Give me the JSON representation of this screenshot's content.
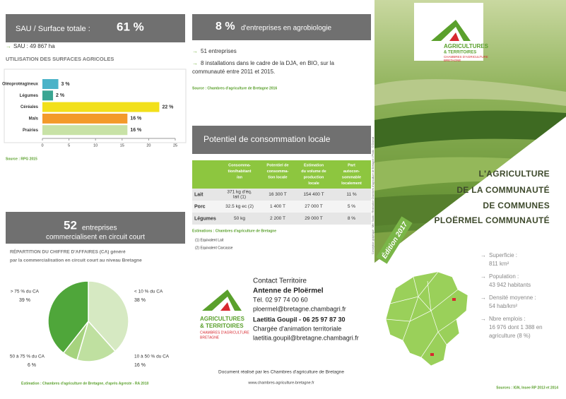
{
  "sau": {
    "title": "SAU / Surface totale :",
    "value": "61 %",
    "detail": "SAU : 49 867 ha",
    "chart_title": "UTILISATION DES SURFACES AGRICOLES",
    "source": "Source : RPG 2015"
  },
  "land_use_chart": {
    "type": "bar",
    "categories": [
      "Oléoprotéagineux",
      "Légumes",
      "Céréales",
      "Maïs",
      "Prairies"
    ],
    "values": [
      3,
      2,
      22,
      16,
      16
    ],
    "value_labels": [
      "3 %",
      "2 %",
      "22 %",
      "16 %",
      "16 %"
    ],
    "colors": [
      "#4bb3c8",
      "#3aa592",
      "#f2e01a",
      "#f39a2a",
      "#c8e2a6"
    ],
    "xlim": [
      0,
      25
    ],
    "xticks": [
      0,
      5,
      10,
      15,
      20,
      25
    ]
  },
  "circuit": {
    "value": "52",
    "title": "entreprises",
    "subtitle": "commercialisent en circuit court",
    "chart_title": [
      "RÉPARTITION DU CHIFFRE D'AFFAIRES (CA) généré",
      "par la commercialisation en circuit court au niveau Bretagne"
    ],
    "source": "Estimation : Chambres d'agriculture de Bretagne, d'après Agreste - RA 2010"
  },
  "revenue_chart": {
    "type": "pie",
    "categories": [
      "< 10 % du CA",
      "10 à 50 % du CA",
      "50 à 75 % du CA",
      "> 75 % du CA"
    ],
    "values": [
      38,
      16,
      6,
      39
    ],
    "value_labels": [
      "38 %",
      "16 %",
      "6 %",
      "39 %"
    ],
    "colors": [
      "#d6e9c2",
      "#bfe0a0",
      "#a6d37e",
      "#4fa63a"
    ]
  },
  "bio": {
    "value": "8 %",
    "title": "d'entreprises en agrobiologie",
    "items": [
      "51 entreprises",
      [
        "8 installations dans le cadre de la DJA, en BIO, sur la",
        "communauté entre 2011 et 2015."
      ]
    ],
    "source": "Source : Chambres d'agriculture de Bretagne 2016"
  },
  "consumption": {
    "title": "Potentiel de consommation locale",
    "columns": [
      [
        "Consomma-",
        "tion/habitant",
        "/an"
      ],
      [
        "Potentiel de",
        "consomma-",
        "tion locale"
      ],
      [
        "Estimation",
        "du volume de",
        "production",
        "locale"
      ],
      [
        "Part",
        "autocon-",
        "sommable",
        "localement"
      ]
    ],
    "rows": [
      [
        "Lait",
        [
          "371 kg d'éq.",
          "lait (1)"
        ],
        "16 300 T",
        "154 400 T",
        "11 %"
      ],
      [
        "Porc",
        [
          "32.5 kg ec (2)"
        ],
        "1 400 T",
        "27 000 T",
        "5 %"
      ],
      [
        "Légumes",
        [
          "50 kg"
        ],
        "2 200 T",
        "29 000 T",
        "8 %"
      ]
    ],
    "source": "Estimations : Chambres d'agriculture de Bretagne",
    "notes": [
      "(1) Equivalent Lait",
      "(2) Equivalent Carcasse"
    ]
  },
  "credits": "Conception graphique : Mer Studio • Réalisation Chambres d'agriculture de Bretagne • Photo : © Dromat",
  "logo": {
    "name": "AGRICULTURES",
    "sub": "& TERRITOIRES",
    "org": "CHAMBRES D'AGRICULTURE",
    "region": "BRETAGNE"
  },
  "contact": [
    "Contact Territoire",
    "Antenne de Ploërmel",
    "Tél. 02 97 74 00 60",
    "ploermel@bretagne.chambagri.fr",
    "Laetitia Goupil - 06 25 97 87 30",
    "Chargée d'animation territoriale",
    "laetitia.goupil@bretagne.chambagri.fr"
  ],
  "footer": [
    "Document réalisé par les Chambres d'agriculture de Bretagne",
    "www.chambres-agriculture-bretagne.fr"
  ],
  "cover": {
    "edition": "Édition 2017",
    "title": [
      "L'AGRICULTURE",
      "DE LA COMMUNAUTÉ",
      "DE COMMUNES",
      "PLOËRMEL COMMUNAUTÉ"
    ],
    "stats": [
      {
        "label": "Superficie :",
        "value": [
          "811 km²"
        ]
      },
      {
        "label": "Population :",
        "value": [
          "43 942 habitants"
        ]
      },
      {
        "label": "Densité moyenne :",
        "value": [
          "54 hab/km²"
        ]
      },
      {
        "label": "Nbre emplois :",
        "value": [
          "16 976 dont 1 388 en",
          "agriculture (8 %)"
        ]
      }
    ],
    "source": "Sources : IGN, Insee RP 2013 et 2014"
  }
}
